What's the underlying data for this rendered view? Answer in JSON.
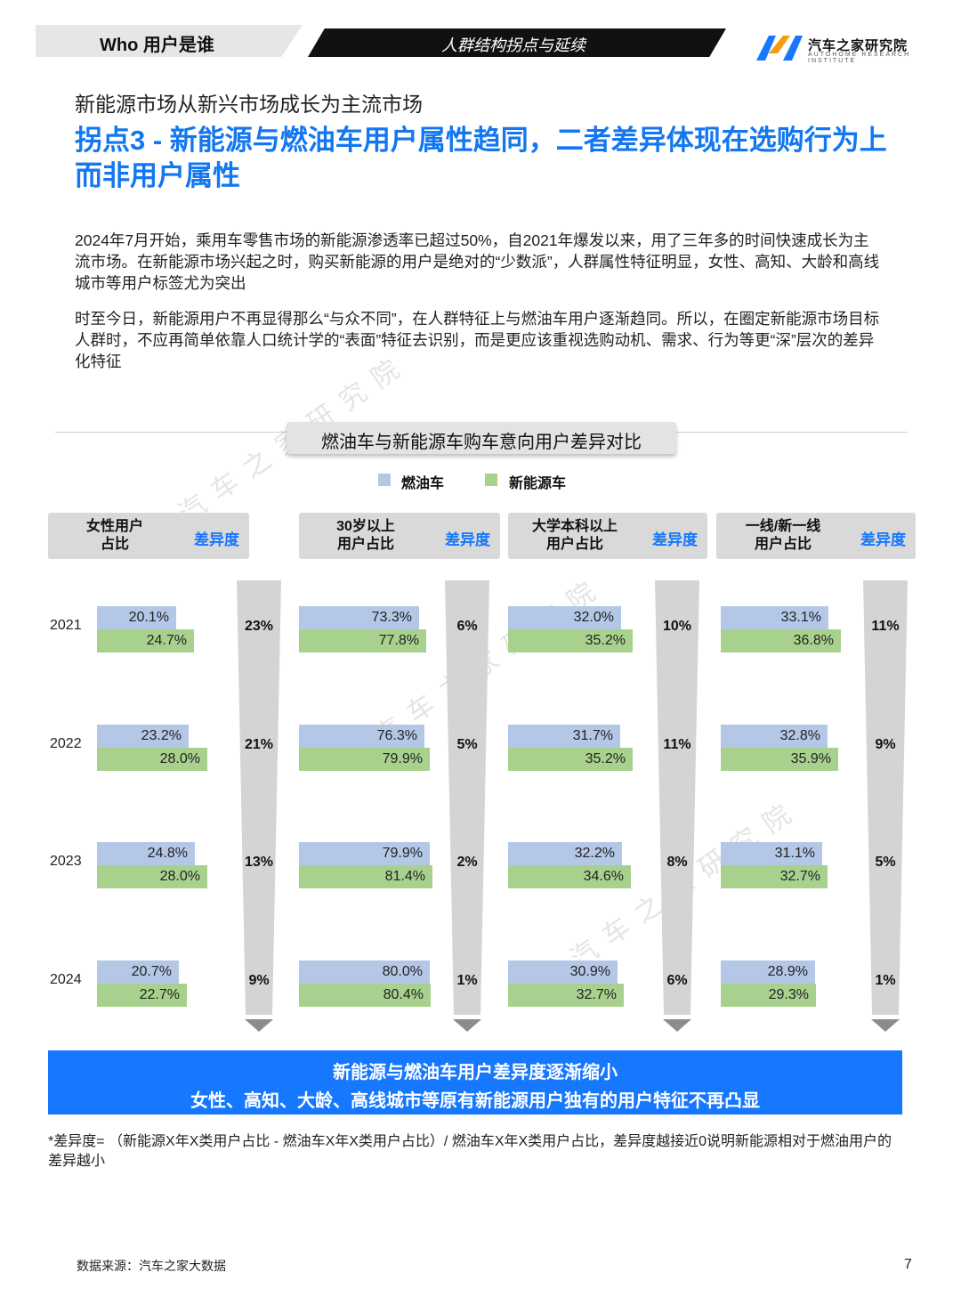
{
  "header": {
    "section": "Who 用户是谁",
    "topic": "人群结构拐点与延续",
    "logo_name": "汽车之家研究院",
    "logo_sub": "AUTOHOME RESEARCH INSTITUTE"
  },
  "subtitle": "新能源市场从新兴市场成长为主流市场",
  "title": "拐点3 - 新能源与燃油车用户属性趋同，二者差异体现在选购行为上而非用户属性",
  "paragraphs": [
    "2024年7月开始，乘用车零售市场的新能源渗透率已超过50%，自2021年爆发以来，用了三年多的时间快速成长为主流市场。在新能源市场兴起之时，购买新能源的用户是绝对的“少数派”，人群属性特征明显，女性、高知、大龄和高线城市等用户标签尤为突出",
    "时至今日，新能源用户不再显得那么“与众不同”，在人群特征上与燃油车用户逐渐趋同。所以，在圈定新能源市场目标人群时，不应再简单依靠人口统计学的“表面”特征去识别，而是更应该重视选购动机、需求、行为等更“深”层次的差异化特征"
  ],
  "watermark": "汽车之家研究院",
  "chart_data": {
    "type": "bar",
    "title": "燃油车与新能源车购车意向用户差异对比",
    "legend": [
      "燃油车",
      "新能源车"
    ],
    "colors": {
      "fuel": "#b4c7e7",
      "nev": "#a9d18e",
      "accent": "#1677ff"
    },
    "years": [
      "2021",
      "2022",
      "2023",
      "2024"
    ],
    "diff_label": "差异度",
    "groups": [
      {
        "name": "女性用户\n占比",
        "fuel": [
          20.1,
          23.2,
          24.8,
          20.7
        ],
        "nev": [
          24.7,
          28.0,
          28.0,
          22.7
        ],
        "fuel_labels": [
          "20.1%",
          "23.2%",
          "24.8%",
          "20.7%"
        ],
        "nev_labels": [
          "24.7%",
          "28.0%",
          "28.0%",
          "22.7%"
        ],
        "diff": [
          "23%",
          "21%",
          "13%",
          "9%"
        ]
      },
      {
        "name": "30岁以上\n用户占比",
        "fuel": [
          73.3,
          76.3,
          79.9,
          80.0
        ],
        "nev": [
          77.8,
          79.9,
          81.4,
          80.4
        ],
        "fuel_labels": [
          "73.3%",
          "76.3%",
          "79.9%",
          "80.0%"
        ],
        "nev_labels": [
          "77.8%",
          "79.9%",
          "81.4%",
          "80.4%"
        ],
        "diff": [
          "6%",
          "5%",
          "2%",
          "1%"
        ]
      },
      {
        "name": "大学本科以上\n用户占比",
        "fuel": [
          32.0,
          31.7,
          32.2,
          30.9
        ],
        "nev": [
          35.2,
          35.2,
          34.6,
          32.7
        ],
        "fuel_labels": [
          "32.0%",
          "31.7%",
          "32.2%",
          "30.9%"
        ],
        "nev_labels": [
          "35.2%",
          "35.2%",
          "34.6%",
          "32.7%"
        ],
        "diff": [
          "10%",
          "11%",
          "8%",
          "6%"
        ]
      },
      {
        "name": "一线/新一线\n用户占比",
        "fuel": [
          33.1,
          32.8,
          31.1,
          28.9
        ],
        "nev": [
          36.8,
          35.9,
          32.7,
          29.3
        ],
        "fuel_labels": [
          "33.1%",
          "32.8%",
          "31.1%",
          "28.9%"
        ],
        "nev_labels": [
          "36.8%",
          "35.9%",
          "32.7%",
          "29.3%"
        ],
        "diff": [
          "11%",
          "9%",
          "5%",
          "1%"
        ]
      }
    ]
  },
  "banner": {
    "line1": "新能源与燃油车用户差异度逐渐缩小",
    "line2": "女性、高知、大龄、高线城市等原有新能源用户独有的用户特征不再凸显"
  },
  "note": "*差异度= （新能源X年X类用户占比 - 燃油车X年X类用户占比）/ 燃油车X年X类用户占比，差异度越接近0说明新能源相对于燃油用户的差异越小",
  "source": "数据来源：汽车之家大数据",
  "page_number": "7"
}
